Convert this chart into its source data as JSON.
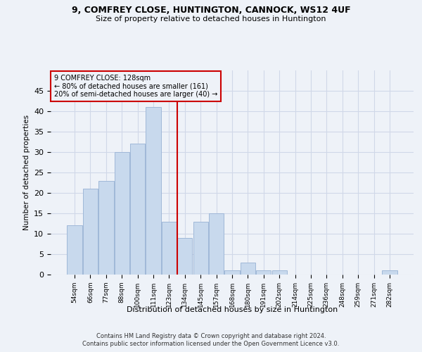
{
  "title1": "9, COMFREY CLOSE, HUNTINGTON, CANNOCK, WS12 4UF",
  "title2": "Size of property relative to detached houses in Huntington",
  "xlabel": "Distribution of detached houses by size in Huntington",
  "ylabel": "Number of detached properties",
  "categories": [
    "54sqm",
    "66sqm",
    "77sqm",
    "88sqm",
    "100sqm",
    "111sqm",
    "123sqm",
    "134sqm",
    "145sqm",
    "157sqm",
    "168sqm",
    "180sqm",
    "191sqm",
    "202sqm",
    "214sqm",
    "225sqm",
    "236sqm",
    "248sqm",
    "259sqm",
    "271sqm",
    "282sqm"
  ],
  "values": [
    12,
    21,
    23,
    30,
    32,
    41,
    13,
    9,
    13,
    15,
    1,
    3,
    1,
    1,
    0,
    0,
    0,
    0,
    0,
    0,
    1
  ],
  "bar_color": "#c8d9ed",
  "bar_edge_color": "#a0b8d8",
  "grid_color": "#d0d8e8",
  "vline_x": 6.5,
  "vline_color": "#cc0000",
  "annotation_line1": "9 COMFREY CLOSE: 128sqm",
  "annotation_line2": "← 80% of detached houses are smaller (161)",
  "annotation_line3": "20% of semi-detached houses are larger (40) →",
  "annotation_box_color": "#cc0000",
  "ylim": [
    0,
    50
  ],
  "yticks": [
    0,
    5,
    10,
    15,
    20,
    25,
    30,
    35,
    40,
    45
  ],
  "footnote1": "Contains HM Land Registry data © Crown copyright and database right 2024.",
  "footnote2": "Contains public sector information licensed under the Open Government Licence v3.0.",
  "bg_color": "#eef2f8"
}
